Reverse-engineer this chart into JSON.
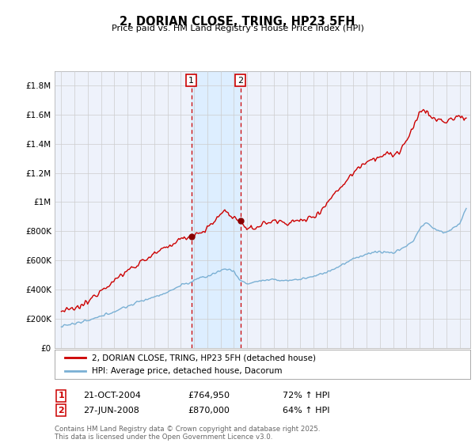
{
  "title": "2, DORIAN CLOSE, TRING, HP23 5FH",
  "subtitle": "Price paid vs. HM Land Registry's House Price Index (HPI)",
  "red_label": "2, DORIAN CLOSE, TRING, HP23 5FH (detached house)",
  "blue_label": "HPI: Average price, detached house, Dacorum",
  "sale1_date": "21-OCT-2004",
  "sale1_price": 764950,
  "sale1_hpi": "72% ↑ HPI",
  "sale2_date": "27-JUN-2008",
  "sale2_price": 870000,
  "sale2_hpi": "64% ↑ HPI",
  "footnote": "Contains HM Land Registry data © Crown copyright and database right 2025.\nThis data is licensed under the Open Government Licence v3.0.",
  "sale1_x": 2004.8,
  "sale2_x": 2008.5,
  "ylim_max": 1900000,
  "yticks": [
    0,
    200000,
    400000,
    600000,
    800000,
    1000000,
    1200000,
    1400000,
    1600000,
    1800000
  ],
  "xlim_min": 1994.5,
  "xlim_max": 2025.8,
  "xticks": [
    1995,
    1996,
    1997,
    1998,
    1999,
    2000,
    2001,
    2002,
    2003,
    2004,
    2005,
    2006,
    2007,
    2008,
    2009,
    2010,
    2011,
    2012,
    2013,
    2014,
    2015,
    2016,
    2017,
    2018,
    2019,
    2020,
    2021,
    2022,
    2023,
    2024,
    2025
  ],
  "background_color": "#ffffff",
  "plot_bg_color": "#eef2fb",
  "grid_color": "#cccccc",
  "red_color": "#cc0000",
  "blue_color": "#7ab0d4",
  "sale_marker_color": "#880000",
  "vline_color": "#cc0000",
  "span_color": "#ddeeff"
}
